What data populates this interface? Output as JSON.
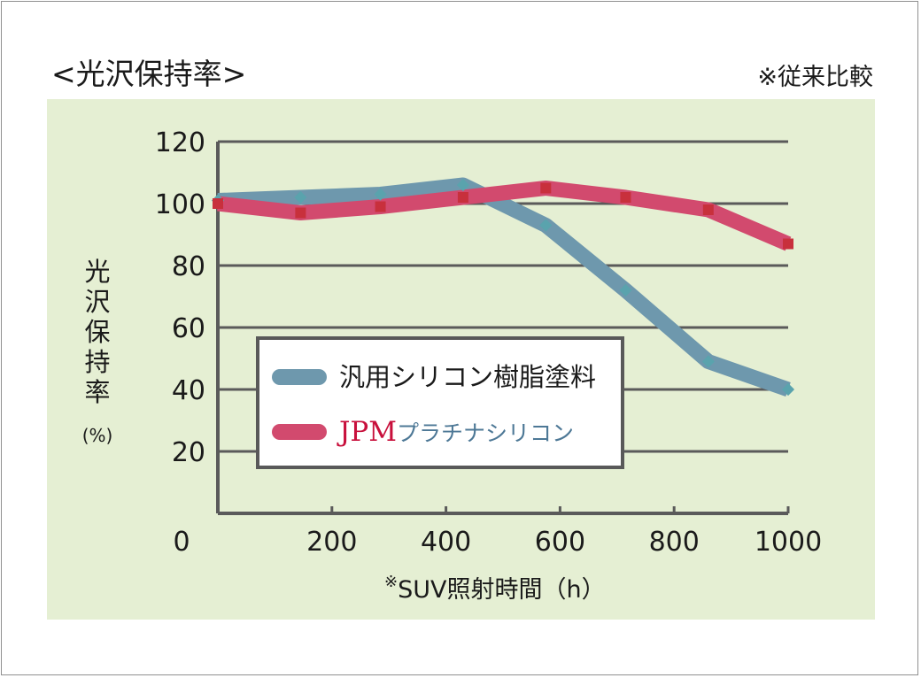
{
  "header": {
    "title": "<光沢保持率>",
    "note": "※従来比較"
  },
  "legend": {
    "series_1": "汎用シリコン樹脂塗料",
    "series_2_brand": "JPM",
    "series_2_rest": "プラチナシリコン"
  },
  "colors": {
    "panel_bg": "#e5efd3",
    "grid": "#5a5a5a",
    "series_1": "#6e98ad",
    "series_1_marker": "#5aa3ad",
    "series_2": "#d24a6e",
    "series_2_marker": "#c8303c"
  },
  "chart_data": {
    "type": "line",
    "title": "<光沢保持率>",
    "ylabel": "光沢保持率",
    "yunit": "(%)",
    "xlabel_mark": "※",
    "xlabel": "SUV照射時間（h）",
    "xlim": [
      0,
      1000
    ],
    "ylim": [
      0,
      120
    ],
    "x_ticks": [
      "200",
      "400",
      "600",
      "800",
      "1000"
    ],
    "x_tick_values": [
      200,
      400,
      600,
      800,
      1000
    ],
    "y_ticks": [
      "20",
      "40",
      "60",
      "80",
      "100",
      "120"
    ],
    "y_tick_values": [
      20,
      40,
      60,
      80,
      100,
      120
    ],
    "origin_label": "0",
    "series": [
      {
        "name": "汎用シリコン樹脂塗料",
        "x": [
          0,
          145,
          285,
          430,
          575,
          715,
          860,
          1000
        ],
        "y": [
          101,
          102,
          103,
          106,
          93,
          72,
          49,
          40
        ]
      },
      {
        "name": "JPMプラチナシリコン",
        "x": [
          0,
          145,
          285,
          430,
          575,
          715,
          860,
          1000
        ],
        "y": [
          100,
          97,
          99,
          102,
          105,
          102,
          98,
          87
        ]
      }
    ]
  }
}
